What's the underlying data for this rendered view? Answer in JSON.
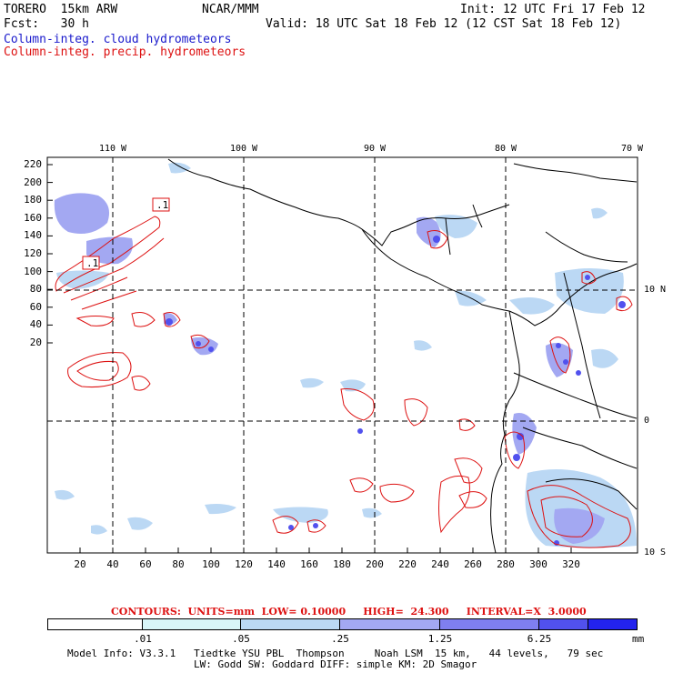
{
  "header": {
    "model": "TORERO  15km ARW",
    "org": "NCAR/MMM",
    "init": "Init: 12 UTC Fri 17 Feb 12",
    "fcst": "Fcst:   30 h",
    "valid": "Valid: 18 UTC Sat 18 Feb 12 (12 CST Sat 18 Feb 12)",
    "field_cloud": "Column-integ. cloud hydrometeors",
    "field_precip": "Column-integ. precip. hydrometeors"
  },
  "colors": {
    "cloud_text": "#1a1acc",
    "precip_text": "#dd1111",
    "contour": "#dd1111"
  },
  "map": {
    "lon_labels": [
      "110 W",
      "100 W",
      "90 W",
      "80 W",
      "70 W"
    ],
    "lat_labels": [
      "10 N",
      "0",
      "10 S"
    ],
    "y_ticks": [
      "220",
      "200",
      "180",
      "160",
      "140",
      "120",
      "100",
      "80",
      "60",
      "40",
      "20"
    ],
    "x_ticks": [
      "20",
      "40",
      "60",
      "80",
      "100",
      "120",
      "140",
      "160",
      "180",
      "200",
      "220",
      "240",
      "260",
      "280",
      "300",
      "320"
    ],
    "contour_box_labels": [
      ".1",
      ".1"
    ]
  },
  "contours_info": {
    "text": "CONTOURS:  UNITS=mm  LOW= 0.10000     HIGH=  24.300     INTERVAL=X  3.0000"
  },
  "colorbar": {
    "levels": [
      ".01",
      ".05",
      ".25",
      "1.25",
      "6.25"
    ],
    "units": "mm",
    "colors": [
      "#ffffff",
      "#d8f6f8",
      "#bbd8f4",
      "#a3a8f2",
      "#7f7ff0",
      "#5151ee",
      "#2323ee"
    ]
  },
  "footer": {
    "line1": "Model Info: V3.3.1   Tiedtke YSU PBL  Thompson     Noah LSM  15 km,   44 levels,   79 sec",
    "line2": "LW: Godd SW: Goddard DIFF: simple KM: 2D Smagor"
  }
}
